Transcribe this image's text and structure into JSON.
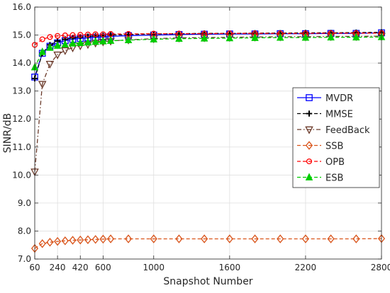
{
  "chart_data": {
    "type": "line",
    "title": "",
    "xlabel": "Snapshot Number",
    "ylabel": "SINR/dB",
    "xlim": [
      60,
      2800
    ],
    "ylim": [
      7.0,
      16.0
    ],
    "x_ticks": [
      60,
      240,
      420,
      600,
      1000,
      1600,
      2200,
      2800
    ],
    "x_tick_labels": [
      "60",
      "240",
      "420",
      "600",
      "1000",
      "1600",
      "2200",
      "2800"
    ],
    "y_ticks": [
      7.0,
      8.0,
      9.0,
      10.0,
      11.0,
      12.0,
      13.0,
      14.0,
      15.0,
      16.0
    ],
    "y_tick_labels": [
      "7.0",
      "8.0",
      "9.0",
      "10.0",
      "11.0",
      "12.0",
      "13.0",
      "14.0",
      "15.0",
      "16.0"
    ],
    "grid": true,
    "legend_position": "right",
    "series": [
      {
        "name": "MVDR",
        "color": "#0000ff",
        "line_style": "solid",
        "marker": "square",
        "x": [
          60,
          120,
          180,
          240,
          300,
          360,
          420,
          480,
          540,
          600,
          660,
          800,
          1000,
          1200,
          1400,
          1600,
          1800,
          2000,
          2200,
          2400,
          2600,
          2800
        ],
        "y": [
          13.5,
          14.35,
          14.6,
          14.72,
          14.8,
          14.85,
          14.88,
          14.9,
          14.92,
          14.93,
          14.95,
          14.98,
          15.0,
          15.02,
          15.03,
          15.04,
          15.04,
          15.05,
          15.05,
          15.06,
          15.06,
          15.08
        ]
      },
      {
        "name": "MMSE",
        "color": "#000000",
        "line_style": "dashed",
        "marker": "plus",
        "x": [
          60,
          120,
          180,
          240,
          300,
          360,
          420,
          480,
          540,
          600,
          660,
          800,
          1000,
          1200,
          1400,
          1600,
          1800,
          2000,
          2200,
          2400,
          2600,
          2800
        ],
        "y": [
          13.45,
          14.35,
          14.65,
          14.78,
          14.85,
          14.9,
          14.93,
          14.95,
          14.97,
          14.98,
          15.0,
          15.02,
          15.04,
          15.05,
          15.06,
          15.06,
          15.07,
          15.07,
          15.08,
          15.08,
          15.09,
          15.1
        ]
      },
      {
        "name": "FeedBack",
        "color": "#6b3a2a",
        "line_style": "dashdot",
        "marker": "triangle-down",
        "x": [
          60,
          120,
          180,
          240,
          300,
          360,
          420,
          480,
          540,
          600,
          660,
          800,
          1000,
          1200,
          1400,
          1600,
          1800,
          2000,
          2200,
          2400,
          2600,
          2800
        ],
        "y": [
          10.12,
          13.25,
          13.97,
          14.3,
          14.45,
          14.55,
          14.62,
          14.67,
          14.72,
          14.76,
          14.79,
          14.83,
          14.87,
          14.9,
          14.91,
          14.92,
          14.93,
          14.94,
          14.94,
          14.95,
          14.95,
          14.96
        ]
      },
      {
        "name": "SSB",
        "color": "#d95319",
        "line_style": "dashed",
        "marker": "diamond",
        "x": [
          60,
          120,
          180,
          240,
          300,
          360,
          420,
          480,
          540,
          600,
          660,
          800,
          1000,
          1200,
          1400,
          1600,
          1800,
          2000,
          2200,
          2400,
          2600,
          2800
        ],
        "y": [
          7.38,
          7.55,
          7.6,
          7.63,
          7.65,
          7.67,
          7.68,
          7.69,
          7.7,
          7.71,
          7.72,
          7.72,
          7.72,
          7.72,
          7.72,
          7.72,
          7.72,
          7.72,
          7.72,
          7.72,
          7.72,
          7.73
        ]
      },
      {
        "name": "OPB",
        "color": "#ff0000",
        "line_style": "dashed",
        "marker": "circle",
        "x": [
          60,
          120,
          180,
          240,
          300,
          360,
          420,
          480,
          540,
          600,
          660,
          800,
          1000,
          1200,
          1400,
          1600,
          1800,
          2000,
          2200,
          2400,
          2600,
          2800
        ],
        "y": [
          14.65,
          14.85,
          14.93,
          14.97,
          14.99,
          15.0,
          15.01,
          15.02,
          15.03,
          15.03,
          15.04,
          15.04,
          15.05,
          15.05,
          15.05,
          15.06,
          15.06,
          15.06,
          15.06,
          15.07,
          15.07,
          15.07
        ]
      },
      {
        "name": "ESB",
        "color": "#00cc00",
        "line_style": "dashed",
        "marker": "triangle-up",
        "x": [
          60,
          120,
          180,
          240,
          300,
          360,
          420,
          480,
          540,
          600,
          660,
          800,
          1000,
          1200,
          1400,
          1600,
          1800,
          2000,
          2200,
          2400,
          2600,
          2800
        ],
        "y": [
          13.85,
          14.4,
          14.55,
          14.62,
          14.67,
          14.7,
          14.72,
          14.74,
          14.76,
          14.78,
          14.8,
          14.82,
          14.85,
          14.87,
          14.88,
          14.89,
          14.9,
          14.91,
          14.91,
          14.92,
          14.92,
          14.93
        ]
      }
    ]
  }
}
